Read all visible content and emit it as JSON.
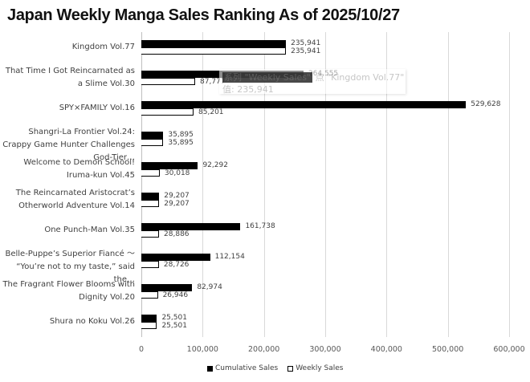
{
  "title": "Japan Weekly Manga Sales Ranking As of 2025/10/27",
  "tooltip": {
    "line1_series": "系列 \"Weekly Sales\"",
    "line1_point": "点 \"Kingdom Vol.77\"",
    "line2": "值: 235,941"
  },
  "legend": [
    {
      "label": "Cumulative Sales",
      "color": "#000000"
    },
    {
      "label": "Weekly Sales",
      "color": "#ffffff"
    }
  ],
  "x_ticks": [
    "0",
    "100,000",
    "200,000",
    "300,000",
    "400,000",
    "500,000",
    "600,000"
  ],
  "categories": [
    {
      "label": "Kingdom Vol.77",
      "cum_label": "235,941",
      "wk_label": "235,941"
    },
    {
      "label": "That Time I Got Reincarnated as a Slime Vol.30",
      "cum_label": "264,555",
      "wk_label": "87,777"
    },
    {
      "label": "SPY×FAMILY Vol.16",
      "cum_label": "529,628",
      "wk_label": "85,201"
    },
    {
      "label": "Shangri-La Frontier Vol.24: Crappy Game Hunter Challenges God-Tier…",
      "cum_label": "35,895",
      "wk_label": "35,895"
    },
    {
      "label": "Welcome to Demon School! Iruma-kun Vol.45",
      "cum_label": "92,292",
      "wk_label": "30,018"
    },
    {
      "label": "The Reincarnated Aristocrat’s Otherworld Adventure Vol.14",
      "cum_label": "29,207",
      "wk_label": "29,207"
    },
    {
      "label": "One Punch-Man Vol.35",
      "cum_label": "161,738",
      "wk_label": "28,886"
    },
    {
      "label": "Belle-Puppe’s Superior Fiancé 〜 “You’re not to my taste,” said the…",
      "cum_label": "112,154",
      "wk_label": "28,726"
    },
    {
      "label": "The Fragrant Flower Blooms with Dignity Vol.20",
      "cum_label": "82,974",
      "wk_label": "26,946"
    },
    {
      "label": "Shura no Koku Vol.26",
      "cum_label": "25,501",
      "wk_label": "25,501"
    }
  ],
  "chart_data": {
    "type": "bar",
    "orientation": "horizontal",
    "title": "Japan Weekly Manga Sales Ranking As of 2025/10/27",
    "xlabel": "",
    "ylabel": "",
    "xlim": [
      0,
      600000
    ],
    "grid": true,
    "legend_position": "bottom",
    "categories": [
      "Kingdom Vol.77",
      "That Time I Got Reincarnated as a Slime Vol.30",
      "SPY×FAMILY Vol.16",
      "Shangri-La Frontier Vol.24: Crappy Game Hunter Challenges God-Tier…",
      "Welcome to Demon School! Iruma-kun Vol.45",
      "The Reincarnated Aristocrat’s Otherworld Adventure Vol.14",
      "One Punch-Man Vol.35",
      "Belle-Puppe’s Superior Fiancé 〜 “You’re not to my taste,” said the…",
      "The Fragrant Flower Blooms with Dignity Vol.20",
      "Shura no Koku Vol.26"
    ],
    "series": [
      {
        "name": "Cumulative Sales",
        "values": [
          235941,
          264555,
          529628,
          35895,
          92292,
          29207,
          161738,
          112154,
          82974,
          25501
        ]
      },
      {
        "name": "Weekly Sales",
        "values": [
          235941,
          87777,
          85201,
          35895,
          30018,
          29207,
          28886,
          28726,
          26946,
          25501
        ]
      }
    ],
    "x_ticks": [
      0,
      100000,
      200000,
      300000,
      400000,
      500000,
      600000
    ],
    "annotations": [
      "Tooltip: 系列 \"Weekly Sales\" 点 \"Kingdom Vol.77\" 值: 235,941"
    ]
  }
}
